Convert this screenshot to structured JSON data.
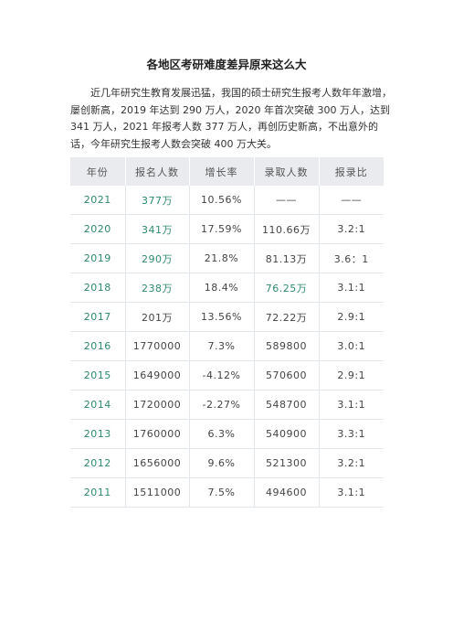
{
  "title": "各地区考研难度差异原来这么大",
  "paragraph": "近几年研究生教育发展迅猛，我国的硕士研究生报考人数年年激增，屡创新高，2019 年达到 290 万人，2020 年首次突破 300 万人，达到 341 万人，2021 年报考人数 377 万人，再创历史新高，不出意外的话，今年研究生报考人数会突破 400 万大关。",
  "table": {
    "headers": [
      "年份",
      "报名人数",
      "增长率",
      "录取人数",
      "报录比"
    ],
    "rows": [
      {
        "year": "2021",
        "applicants": "377万",
        "growth": "10.56%",
        "admitted": "——",
        "ratio": "——"
      },
      {
        "year": "2020",
        "applicants": "341万",
        "growth": "17.59%",
        "admitted": "110.66万",
        "ratio": "3.2:1"
      },
      {
        "year": "2019",
        "applicants": "290万",
        "growth": "21.8%",
        "admitted": "81.13万",
        "ratio": "3.6：1"
      },
      {
        "year": "2018",
        "applicants": "238万",
        "growth": "18.4%",
        "admitted": "76.25万",
        "ratio": "3.1:1"
      },
      {
        "year": "2017",
        "applicants": "201万",
        "growth": "13.56%",
        "admitted": "72.22万",
        "ratio": "2.9:1"
      },
      {
        "year": "2016",
        "applicants": "1770000",
        "growth": "7.3%",
        "admitted": "589800",
        "ratio": "3.0:1"
      },
      {
        "year": "2015",
        "applicants": "1649000",
        "growth": "-4.12%",
        "admitted": "570600",
        "ratio": "2.9:1"
      },
      {
        "year": "2014",
        "applicants": "1720000",
        "growth": "-2.27%",
        "admitted": "548700",
        "ratio": "3.1:1"
      },
      {
        "year": "2013",
        "applicants": "1760000",
        "growth": "6.3%",
        "admitted": "540900",
        "ratio": "3.3:1"
      },
      {
        "year": "2012",
        "applicants": "1656000",
        "growth": "9.6%",
        "admitted": "521300",
        "ratio": "3.2:1"
      },
      {
        "year": "2011",
        "applicants": "1511000",
        "growth": "7.5%",
        "admitted": "494600",
        "ratio": "3.1:1"
      }
    ]
  },
  "colors": {
    "accent": "#2e8b6a",
    "header_bg": "#e9ebee"
  }
}
